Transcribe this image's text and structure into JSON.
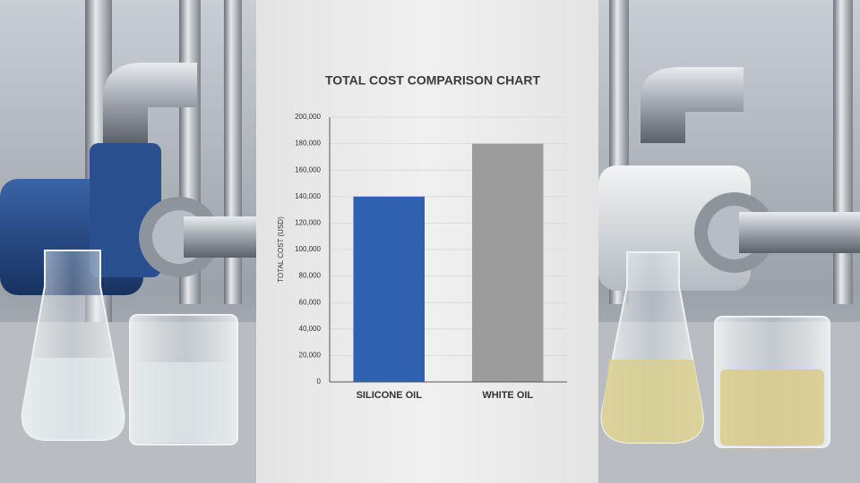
{
  "chart_data": {
    "type": "bar",
    "title": "TOTAL COST COMPARISON CHART",
    "ylabel": "TOTAL COST (USD)",
    "categories": [
      "SILICONE OIL",
      "WHITE OIL"
    ],
    "values": [
      140000,
      180000
    ],
    "colors": [
      "#2e62b0",
      "#9c9c9c"
    ],
    "ylim": [
      0,
      200000
    ],
    "yticks": [
      0,
      {
        "value": 20000,
        "label": "20,000"
      },
      {
        "value": 40000,
        "label": "40,000"
      },
      {
        "value": 60000,
        "label": "60,000"
      },
      {
        "value": 80000,
        "label": "80,000"
      },
      {
        "value": 100000,
        "label": "100,000"
      },
      {
        "value": 120000,
        "label": "120,000"
      },
      {
        "value": 140000,
        "label": "140,000"
      },
      {
        "value": 160000,
        "label": "160,000"
      },
      {
        "value": 180000,
        "label": "180,000"
      },
      {
        "value": 200000,
        "label": "200,000"
      }
    ],
    "grid": true
  }
}
